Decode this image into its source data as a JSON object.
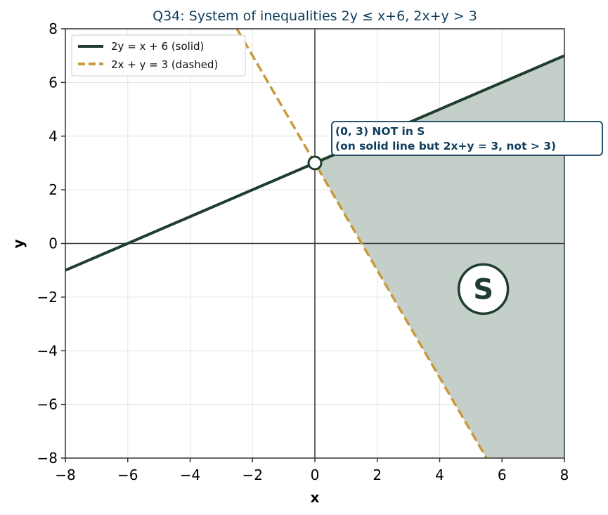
{
  "chart_data": {
    "type": "line",
    "title": "Q34: System of inequalities  2y ≤ x+6,  2x+y > 3",
    "xlabel": "x",
    "ylabel": "y",
    "xlim": [
      -8,
      8
    ],
    "ylim": [
      -8,
      8
    ],
    "xticks": [
      -8,
      -6,
      -4,
      -2,
      0,
      2,
      4,
      6,
      8
    ],
    "yticks": [
      -8,
      -6,
      -4,
      -2,
      0,
      2,
      4,
      6,
      8
    ],
    "xtick_labels": [
      "−8",
      "−6",
      "−4",
      "−2",
      "0",
      "2",
      "4",
      "6",
      "8"
    ],
    "ytick_labels": [
      "−8",
      "−6",
      "−4",
      "−2",
      "0",
      "2",
      "4",
      "6",
      "8"
    ],
    "grid": true,
    "legend_position": "top-left",
    "series": [
      {
        "name": "2y = x + 6  (solid)",
        "style": "solid",
        "color": "#1f3d2e",
        "x": [
          -8,
          8
        ],
        "y": [
          -1,
          7
        ]
      },
      {
        "name": "2x + y = 3  (dashed)",
        "style": "dashed",
        "color": "#c99a3d",
        "x": [
          -2.5,
          5.5
        ],
        "y": [
          8,
          -8
        ]
      }
    ],
    "region": {
      "label": "S",
      "fill": "#c5cfc9",
      "vertices": [
        [
          0,
          3
        ],
        [
          8,
          7
        ],
        [
          8,
          -8
        ],
        [
          5.5,
          -8
        ]
      ]
    },
    "point": {
      "x": 0,
      "y": 3,
      "style": "open",
      "annotation": [
        "(0, 3)  NOT in S",
        "(on solid line but 2x+y = 3, not > 3)"
      ]
    },
    "region_label_pos": [
      5.4,
      -1.7
    ],
    "colors": {
      "title": "#0f3d5c",
      "annotation": "#0f3d5c",
      "solid_line": "#1f3d2e",
      "dashed_line": "#c99a3d",
      "region_fill": "#c5cfc9",
      "grid": "#e3e3e3",
      "zero_axis": "#333333"
    }
  }
}
